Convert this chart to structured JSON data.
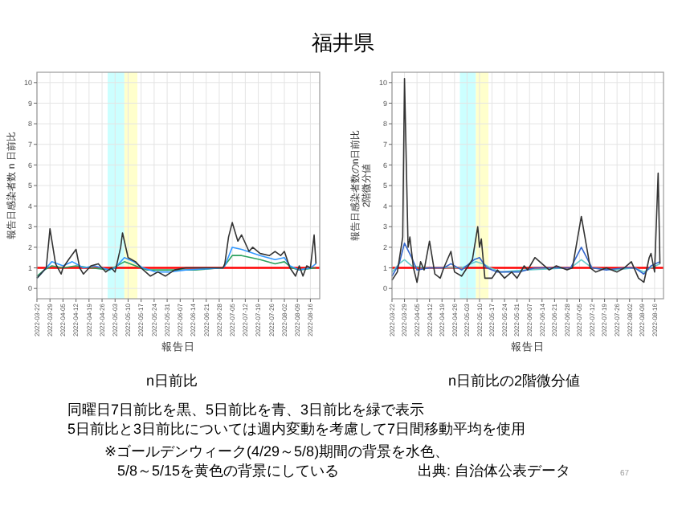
{
  "chart_data": [
    {
      "type": "line",
      "title": "福井県",
      "xlabel": "報告日",
      "ylabel": "報告日感染者数 n 日前比",
      "annotations": [
        "n日前比"
      ],
      "grid": true,
      "marker": "none",
      "line_style": "solid",
      "xlim": [
        "2022-03-22",
        "2022-08-21"
      ],
      "ylim": [
        -0.5,
        10.5
      ],
      "yticks": [
        0,
        1,
        2,
        3,
        4,
        5,
        6,
        7,
        8,
        9,
        10
      ],
      "xticks": [
        "2022-03-22",
        "2022-03-29",
        "2022-04-05",
        "2022-04-12",
        "2022-04-19",
        "2022-04-26",
        "2022-05-03",
        "2022-05-10",
        "2022-05-17",
        "2022-05-24",
        "2022-05-31",
        "2022-06-07",
        "2022-06-14",
        "2022-06-21",
        "2022-06-28",
        "2022-07-05",
        "2022-07-12",
        "2022-07-19",
        "2022-07-26",
        "2022-08-02",
        "2022-08-09",
        "2022-08-16"
      ],
      "bands": [
        {
          "axis": "x",
          "from": "2022-04-29",
          "to": "2022-05-08",
          "color": "#ccffff"
        },
        {
          "axis": "x",
          "from": "2022-05-08",
          "to": "2022-05-15",
          "color": "#ffffcc"
        }
      ],
      "ref_lines": [
        {
          "axis": "y",
          "value": 1,
          "color": "#ff0000"
        }
      ],
      "series": [
        {
          "color": "#2ca25f",
          "x": [
            "2022-03-22",
            "2022-03-26",
            "2022-03-30",
            "2022-04-05",
            "2022-04-12",
            "2022-04-20",
            "2022-04-30",
            "2022-05-08",
            "2022-05-14",
            "2022-05-20",
            "2022-06-01",
            "2022-06-15",
            "2022-06-30",
            "2022-07-05",
            "2022-07-10",
            "2022-07-20",
            "2022-07-28",
            "2022-08-02",
            "2022-08-06",
            "2022-08-10",
            "2022-08-19"
          ],
          "values": [
            0.6,
            0.9,
            1.1,
            1.0,
            1.1,
            1.0,
            0.9,
            1.3,
            1.1,
            0.9,
            0.9,
            0.9,
            1.0,
            1.6,
            1.6,
            1.4,
            1.2,
            1.3,
            1.0,
            0.9,
            1.0
          ]
        },
        {
          "color": "#3399ff",
          "x": [
            "2022-03-22",
            "2022-03-26",
            "2022-03-30",
            "2022-04-05",
            "2022-04-10",
            "2022-04-16",
            "2022-04-22",
            "2022-04-30",
            "2022-05-03",
            "2022-05-08",
            "2022-05-13",
            "2022-05-18",
            "2022-05-25",
            "2022-06-01",
            "2022-06-10",
            "2022-06-30",
            "2022-07-01",
            "2022-07-05",
            "2022-07-10",
            "2022-07-20",
            "2022-07-28",
            "2022-08-02",
            "2022-08-05",
            "2022-08-10",
            "2022-08-16",
            "2022-08-19"
          ],
          "values": [
            0.5,
            0.9,
            1.3,
            1.1,
            1.3,
            1.0,
            1.1,
            0.9,
            1.0,
            1.5,
            1.3,
            1.0,
            0.8,
            0.8,
            0.9,
            1.0,
            1.1,
            2.0,
            1.9,
            1.6,
            1.4,
            1.5,
            1.1,
            0.9,
            1.0,
            1.2
          ]
        },
        {
          "color": "#333333",
          "x": [
            "2022-03-22",
            "2022-03-27",
            "2022-03-29",
            "2022-04-01",
            "2022-04-04",
            "2022-04-05",
            "2022-04-08",
            "2022-04-12",
            "2022-04-14",
            "2022-04-16",
            "2022-04-20",
            "2022-04-24",
            "2022-04-28",
            "2022-05-01",
            "2022-05-03",
            "2022-05-06",
            "2022-05-07",
            "2022-05-10",
            "2022-05-14",
            "2022-05-17",
            "2022-05-22",
            "2022-05-26",
            "2022-05-30",
            "2022-06-04",
            "2022-06-10",
            "2022-06-30",
            "2022-07-01",
            "2022-07-03",
            "2022-07-05",
            "2022-07-08",
            "2022-07-10",
            "2022-07-14",
            "2022-07-16",
            "2022-07-20",
            "2022-07-25",
            "2022-07-28",
            "2022-07-31",
            "2022-08-02",
            "2022-08-05",
            "2022-08-08",
            "2022-08-10",
            "2022-08-12",
            "2022-08-14",
            "2022-08-16",
            "2022-08-18",
            "2022-08-19"
          ],
          "values": [
            0.5,
            1.0,
            2.9,
            1.2,
            0.7,
            1.0,
            1.4,
            1.9,
            1.0,
            0.7,
            1.1,
            1.2,
            0.8,
            1.0,
            0.8,
            2.0,
            2.7,
            1.5,
            1.3,
            1.0,
            0.6,
            0.8,
            0.6,
            0.9,
            1.0,
            1.0,
            1.2,
            2.5,
            3.2,
            2.3,
            2.6,
            1.8,
            2.0,
            1.7,
            1.6,
            1.8,
            1.6,
            1.8,
            1.0,
            0.6,
            1.1,
            0.6,
            1.1,
            1.0,
            2.6,
            1.2
          ]
        }
      ]
    },
    {
      "type": "line",
      "xlabel": "報告日",
      "ylabel": "報告日感染者数のn日前比\n2階微分値",
      "annotations": [
        "n日前比の2階微分値",
        "同曜日7日前比を黒、5日前比を青、3日前比を緑で表示",
        "5日前比と3日前比については週内変動を考慮して7日間移動平均を使用",
        "※ゴールデンウィーク(4/29～5/8)期間の背景を水色、",
        "5/8～5/15を黄色の背景にしている",
        "出典: 自治体公表データ",
        "67"
      ],
      "grid": true,
      "marker": "none",
      "line_style": "solid",
      "xlim": [
        "2022-03-22",
        "2022-08-21"
      ],
      "ylim": [
        -0.5,
        10.5
      ],
      "yticks": [
        0,
        1,
        2,
        3,
        4,
        5,
        6,
        7,
        8,
        9,
        10
      ],
      "xticks": [
        "2022-03-22",
        "2022-03-29",
        "2022-04-05",
        "2022-04-12",
        "2022-04-19",
        "2022-04-26",
        "2022-05-03",
        "2022-05-10",
        "2022-05-17",
        "2022-05-24",
        "2022-05-31",
        "2022-06-07",
        "2022-06-14",
        "2022-06-21",
        "2022-06-28",
        "2022-07-05",
        "2022-07-12",
        "2022-07-19",
        "2022-07-26",
        "2022-08-02",
        "2022-08-09",
        "2022-08-16"
      ],
      "bands": [
        {
          "axis": "x",
          "from": "2022-04-29",
          "to": "2022-05-08",
          "color": "#ccffff"
        },
        {
          "axis": "x",
          "from": "2022-05-08",
          "to": "2022-05-15",
          "color": "#ffffcc"
        }
      ],
      "ref_lines": [
        {
          "axis": "y",
          "value": 1,
          "color": "#ff0000"
        }
      ],
      "series": [
        {
          "color": "#66cccc",
          "x": [
            "2022-03-22",
            "2022-03-26",
            "2022-03-29",
            "2022-04-02",
            "2022-04-10",
            "2022-04-24",
            "2022-04-30",
            "2022-05-08",
            "2022-05-12",
            "2022-05-16",
            "2022-05-22",
            "2022-06-05",
            "2022-06-30",
            "2022-07-06",
            "2022-07-12",
            "2022-07-25",
            "2022-08-05",
            "2022-08-10",
            "2022-08-14",
            "2022-08-19"
          ],
          "values": [
            0.8,
            1.2,
            1.4,
            1.1,
            1.0,
            1.0,
            1.0,
            1.3,
            1.2,
            1.0,
            0.8,
            0.9,
            1.0,
            1.4,
            1.0,
            0.9,
            1.0,
            0.8,
            1.0,
            1.2
          ]
        },
        {
          "color": "#3366cc",
          "x": [
            "2022-03-22",
            "2022-03-26",
            "2022-03-29",
            "2022-04-02",
            "2022-04-05",
            "2022-04-12",
            "2022-04-20",
            "2022-04-24",
            "2022-04-30",
            "2022-05-07",
            "2022-05-10",
            "2022-05-14",
            "2022-05-20",
            "2022-06-01",
            "2022-06-10",
            "2022-06-30",
            "2022-07-06",
            "2022-07-12",
            "2022-07-20",
            "2022-07-30",
            "2022-08-05",
            "2022-08-10",
            "2022-08-14",
            "2022-08-19"
          ],
          "values": [
            0.6,
            1.2,
            2.2,
            1.5,
            0.9,
            1.0,
            1.0,
            1.2,
            0.9,
            1.4,
            1.5,
            1.0,
            0.8,
            0.8,
            1.0,
            1.0,
            2.0,
            1.0,
            0.9,
            1.0,
            1.0,
            0.7,
            1.1,
            1.3
          ]
        },
        {
          "color": "#333333",
          "x": [
            "2022-03-22",
            "2022-03-25",
            "2022-03-28",
            "2022-03-29",
            "2022-03-31",
            "2022-04-01",
            "2022-04-03",
            "2022-04-05",
            "2022-04-07",
            "2022-04-09",
            "2022-04-12",
            "2022-04-15",
            "2022-04-18",
            "2022-04-20",
            "2022-04-24",
            "2022-04-26",
            "2022-04-30",
            "2022-05-03",
            "2022-05-06",
            "2022-05-09",
            "2022-05-10",
            "2022-05-11",
            "2022-05-13",
            "2022-05-17",
            "2022-05-20",
            "2022-05-24",
            "2022-05-28",
            "2022-05-31",
            "2022-06-04",
            "2022-06-06",
            "2022-06-10",
            "2022-06-14",
            "2022-06-18",
            "2022-06-22",
            "2022-06-28",
            "2022-07-01",
            "2022-07-04",
            "2022-07-06",
            "2022-07-08",
            "2022-07-11",
            "2022-07-14",
            "2022-07-20",
            "2022-07-26",
            "2022-07-30",
            "2022-08-03",
            "2022-08-07",
            "2022-08-10",
            "2022-08-13",
            "2022-08-14",
            "2022-08-16",
            "2022-08-18",
            "2022-08-19"
          ],
          "values": [
            0.4,
            0.8,
            2.5,
            10.2,
            2.0,
            2.5,
            1.0,
            0.3,
            1.3,
            0.9,
            2.3,
            0.7,
            0.5,
            1.0,
            1.8,
            0.8,
            0.6,
            1.0,
            1.4,
            3.0,
            2.0,
            2.4,
            0.5,
            0.5,
            0.9,
            0.5,
            0.8,
            0.5,
            1.1,
            0.9,
            1.5,
            1.2,
            0.9,
            1.1,
            0.9,
            1.0,
            2.5,
            3.5,
            2.5,
            1.0,
            0.8,
            1.0,
            0.8,
            1.0,
            1.3,
            0.5,
            0.3,
            1.5,
            1.7,
            0.8,
            5.6,
            1.2
          ]
        }
      ]
    }
  ]
}
